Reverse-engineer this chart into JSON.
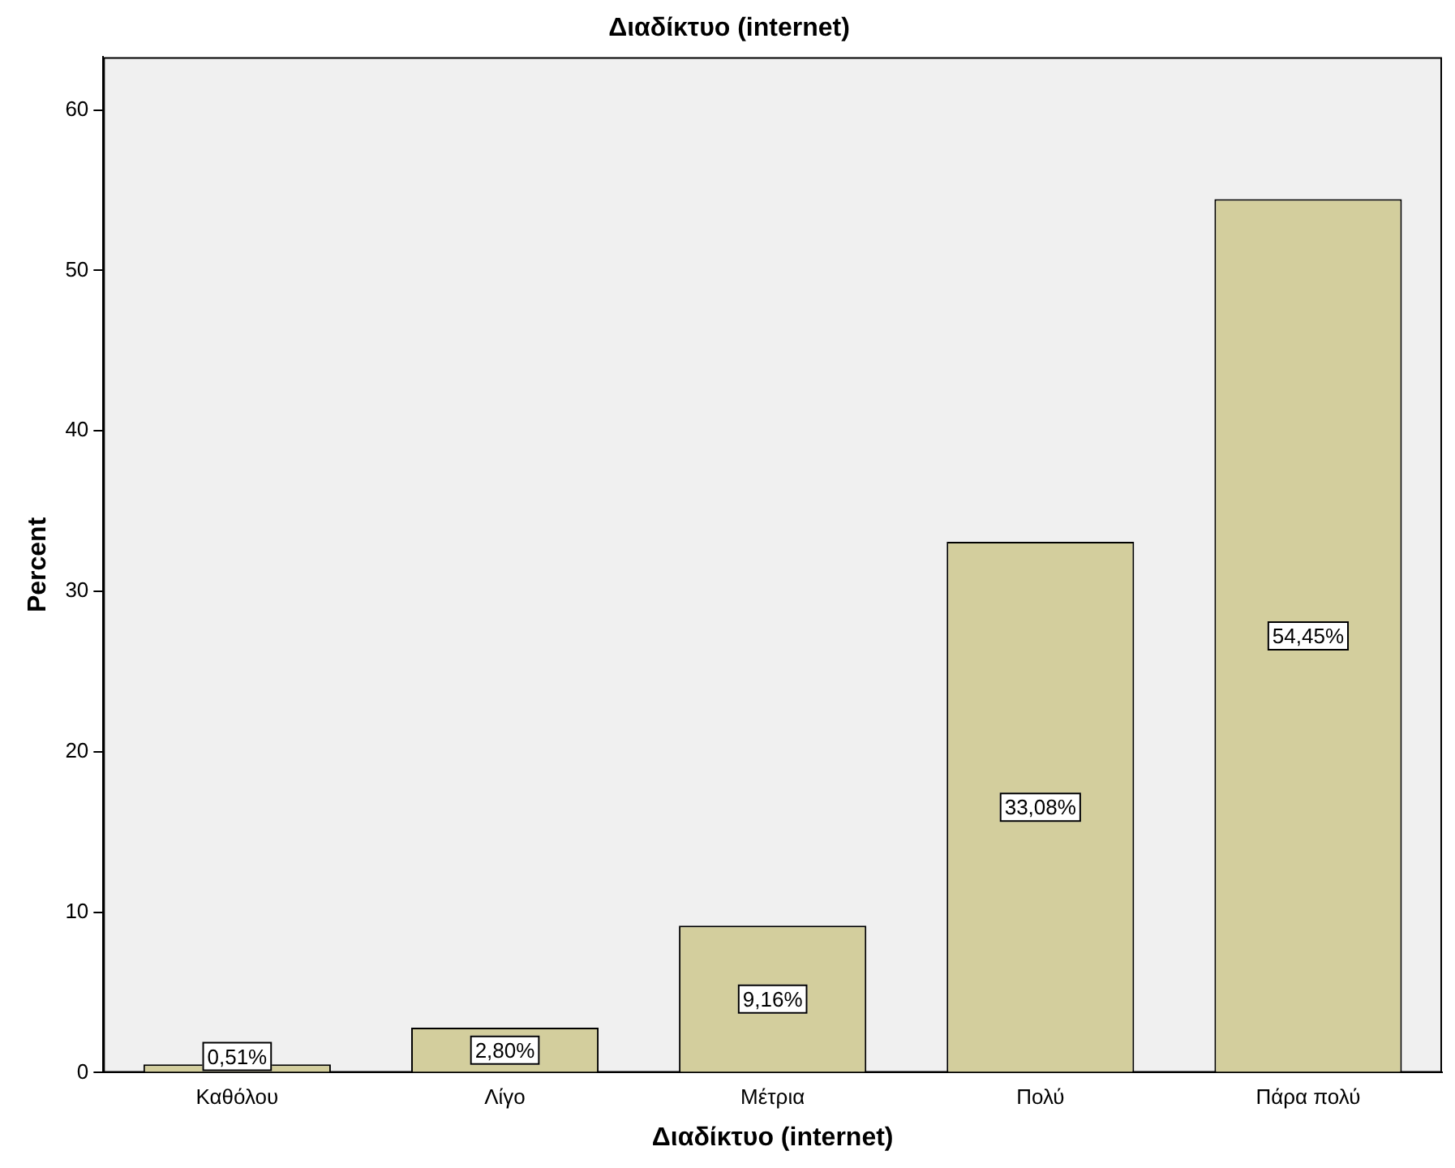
{
  "chart_data": {
    "type": "bar",
    "title": "Διαδίκτυο (internet)",
    "xlabel": "Διαδίκτυο (internet)",
    "ylabel": "Percent",
    "categories": [
      "Καθόλου",
      "Λίγο",
      "Μέτρια",
      "Πολύ",
      "Πάρα πολύ"
    ],
    "values": [
      0.51,
      2.8,
      9.16,
      33.08,
      54.45
    ],
    "value_labels": [
      "0,51%",
      "2,80%",
      "9,16%",
      "33,08%",
      "54,45%"
    ],
    "color": "#d3ce9d",
    "ylim": [
      0,
      63.3
    ],
    "yticks": [
      0,
      10,
      20,
      30,
      40,
      50,
      60
    ],
    "grid": false,
    "legend": false
  }
}
